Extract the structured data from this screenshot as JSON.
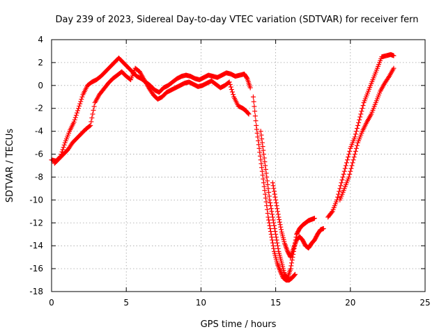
{
  "chart_data": {
    "type": "scatter",
    "title": "Day 239 of 2023, Sidereal Day-to-day VTEC variation (SDTVAR) for receiver fern",
    "xlabel": "GPS time / hours",
    "ylabel": "SDTVAR / TECUs",
    "xlim": [
      0,
      25
    ],
    "ylim": [
      -18,
      4
    ],
    "xticks": [
      0,
      5,
      10,
      15,
      20,
      25
    ],
    "yticks": [
      -18,
      -16,
      -14,
      -12,
      -10,
      -8,
      -6,
      -4,
      -2,
      0,
      2,
      4
    ],
    "grid": true,
    "marker": "plus",
    "color": "#ff0000",
    "series": [
      {
        "x": [
          0.0,
          0.3,
          0.6,
          0.9,
          1.2,
          1.5,
          1.8,
          2.1,
          2.4,
          2.7,
          3.0,
          3.3,
          3.6,
          3.9,
          4.2,
          4.5,
          4.8,
          5.1,
          5.4,
          5.7,
          6.0,
          6.3,
          6.6,
          6.9,
          7.2,
          7.5,
          7.8,
          8.1,
          8.4,
          8.7,
          9.0,
          9.3,
          9.6,
          9.9,
          10.2,
          10.5,
          10.8,
          11.1,
          11.4,
          11.7,
          12.0,
          12.3,
          12.6,
          12.9,
          13.1,
          13.3
        ],
        "y": [
          -6.5,
          -6.6,
          -6.2,
          -5.0,
          -4.0,
          -3.2,
          -2.0,
          -0.8,
          0.0,
          0.3,
          0.5,
          0.8,
          1.2,
          1.6,
          2.0,
          2.4,
          2.0,
          1.6,
          1.2,
          0.8,
          0.6,
          0.3,
          0.0,
          -0.4,
          -0.6,
          -0.2,
          0.0,
          0.3,
          0.6,
          0.8,
          0.9,
          0.8,
          0.6,
          0.5,
          0.7,
          0.9,
          0.8,
          0.7,
          0.9,
          1.1,
          1.0,
          0.8,
          0.9,
          1.0,
          0.6,
          -0.2
        ]
      },
      {
        "x": [
          0.2,
          0.5,
          0.8,
          1.1,
          1.4,
          1.7,
          2.0,
          2.3,
          2.6,
          2.9,
          3.2,
          3.5,
          3.8,
          4.1,
          4.4,
          4.7,
          5.0,
          5.3,
          5.6,
          5.9,
          6.2,
          6.5,
          6.8,
          7.1,
          7.4,
          7.7,
          8.0,
          8.3,
          8.6,
          8.9,
          9.2,
          9.5,
          9.8,
          10.1,
          10.4,
          10.7,
          11.0,
          11.3,
          11.6,
          11.9,
          12.2,
          12.5,
          12.8,
          13.0,
          13.2
        ],
        "y": [
          -6.8,
          -6.4,
          -6.0,
          -5.6,
          -5.0,
          -4.6,
          -4.2,
          -3.8,
          -3.5,
          -1.5,
          -0.8,
          -0.3,
          0.2,
          0.6,
          0.9,
          1.2,
          0.8,
          0.5,
          1.5,
          1.2,
          0.5,
          -0.2,
          -0.8,
          -1.2,
          -1.0,
          -0.6,
          -0.4,
          -0.2,
          0.0,
          0.2,
          0.3,
          0.1,
          -0.1,
          0.0,
          0.2,
          0.4,
          0.1,
          -0.2,
          0.0,
          0.3,
          -1.0,
          -1.8,
          -2.0,
          -2.2,
          -2.5
        ]
      },
      {
        "x": [
          13.5,
          13.7,
          13.9,
          14.1,
          14.3,
          14.5,
          14.7,
          14.9,
          15.1,
          15.3,
          15.5,
          15.7,
          15.9,
          16.1,
          16.3
        ],
        "y": [
          -1.0,
          -3.5,
          -5.5,
          -7.5,
          -9.5,
          -11.5,
          -13.0,
          -14.5,
          -15.5,
          -16.2,
          -16.8,
          -17.0,
          -17.0,
          -16.8,
          -16.5
        ]
      },
      {
        "x": [
          14.0,
          14.2,
          14.4,
          14.6,
          14.8,
          15.0,
          15.2,
          15.4,
          15.6,
          15.8,
          16.0,
          16.2,
          16.4,
          16.6,
          16.8,
          17.0,
          17.2,
          17.4,
          17.6
        ],
        "y": [
          -4.0,
          -6.0,
          -8.0,
          -10.0,
          -11.5,
          -13.0,
          -14.5,
          -15.5,
          -16.5,
          -16.8,
          -16.0,
          -14.5,
          -13.0,
          -12.5,
          -12.2,
          -12.0,
          -11.8,
          -11.7,
          -11.6
        ]
      },
      {
        "x": [
          14.8,
          15.0,
          15.2,
          15.4,
          15.6,
          15.8,
          16.0,
          16.2,
          16.4,
          16.6,
          16.8,
          17.0,
          17.2,
          17.4,
          17.6,
          17.8,
          18.0,
          18.2
        ],
        "y": [
          -8.5,
          -10.0,
          -11.5,
          -12.8,
          -13.8,
          -14.5,
          -15.0,
          -14.2,
          -13.5,
          -13.2,
          -13.5,
          -14.0,
          -14.2,
          -13.8,
          -13.5,
          -13.0,
          -12.6,
          -12.5
        ]
      },
      {
        "x": [
          18.5,
          18.8,
          19.1,
          19.4,
          19.7,
          20.0,
          20.3,
          20.6,
          20.9,
          21.2,
          21.5,
          21.8,
          22.1,
          22.4,
          22.7,
          22.9
        ],
        "y": [
          -11.5,
          -11.0,
          -10.0,
          -8.5,
          -7.0,
          -5.5,
          -4.5,
          -3.0,
          -1.5,
          -0.5,
          0.5,
          1.5,
          2.5,
          2.6,
          2.7,
          2.6
        ]
      },
      {
        "x": [
          19.3,
          19.6,
          19.9,
          20.2,
          20.5,
          20.8,
          21.1,
          21.4,
          21.7,
          22.0,
          22.3,
          22.6,
          22.9
        ],
        "y": [
          -10.0,
          -9.0,
          -8.0,
          -6.5,
          -5.0,
          -4.0,
          -3.2,
          -2.5,
          -1.5,
          -0.5,
          0.2,
          0.8,
          1.5
        ]
      }
    ]
  }
}
